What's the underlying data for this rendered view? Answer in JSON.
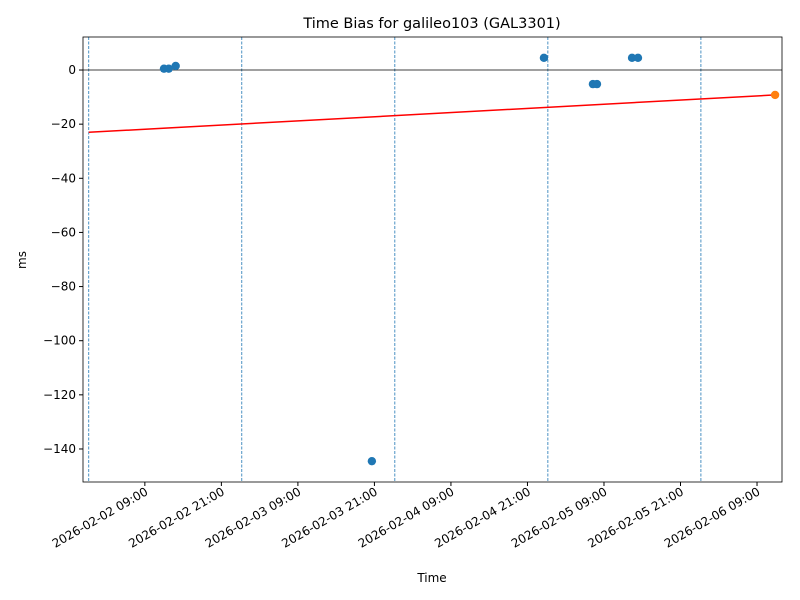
{
  "chart_data": {
    "type": "scatter",
    "title": "Time Bias for galileo103 (GAL3301)",
    "x_label": "Time",
    "y_label": "ms",
    "series": [
      {
        "color": "#1f77b4",
        "x": [
          "2026-02-02 12:00",
          "2026-02-02 12:45",
          "2026-02-02 13:50",
          "2026-02-03 20:36",
          "2026-02-04 23:35",
          "2026-02-05 07:16",
          "2026-02-05 07:54",
          "2026-02-05 13:24",
          "2026-02-05 14:20"
        ],
        "values": [
          0.5,
          0.5,
          1.5,
          -144.5,
          4.5,
          -5.2,
          -5.2,
          4.5,
          4.5
        ]
      },
      {
        "color": "#ff7f0e",
        "x": [
          "2026-02-06 11:50"
        ],
        "values": [
          -9.2
        ]
      }
    ],
    "trend": {
      "color": "#ff0000",
      "x": [
        "2026-02-02 00:12",
        "2026-02-06 11:50"
      ],
      "values": [
        -23,
        -9.2
      ]
    },
    "vlines": {
      "color": "#1f77b4",
      "x": [
        "2026-02-02 00:12",
        "2026-02-03 00:12",
        "2026-02-04 00:12",
        "2026-02-05 00:12",
        "2026-02-06 00:12"
      ]
    },
    "hline": 0,
    "xlim": [
      "2026-02-01 23:18",
      "2026-02-06 12:55"
    ],
    "xticks": [
      "2026-02-02 09:00",
      "2026-02-02 21:00",
      "2026-02-03 09:00",
      "2026-02-03 21:00",
      "2026-02-04 09:00",
      "2026-02-04 21:00",
      "2026-02-05 09:00",
      "2026-02-05 21:00",
      "2026-02-06 09:00"
    ],
    "ylim": [
      -152.2,
      12.2
    ],
    "yticks": [
      0,
      {
        "value": -20,
        "label": "−20"
      },
      {
        "value": -40,
        "label": "−40"
      },
      {
        "value": -60,
        "label": "−60"
      },
      {
        "value": -80,
        "label": "−80"
      },
      {
        "value": -100,
        "label": "−100"
      },
      {
        "value": -120,
        "label": "−120"
      },
      {
        "value": -140,
        "label": "−140"
      }
    ]
  }
}
